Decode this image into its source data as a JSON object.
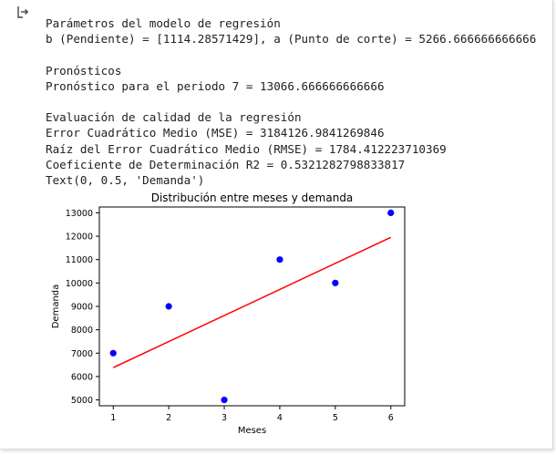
{
  "output_icon": "output-redirect-icon",
  "stdout_lines": [
    "Parámetros del modelo de regresión",
    "b (Pendiente) = [1114.28571429], a (Punto de corte) = 5266.666666666666",
    "",
    "Pronósticos",
    "Pronóstico para el periodo 7 = 13066.666666666666",
    "",
    "Evaluación de calidad de la regresión",
    "Error Cuadrático Medio (MSE) = 3184126.9841269846",
    "Raíz del Error Cuadrático Medio (RMSE) = 1784.412223710369",
    "Coeficiente de Determinación R2 = 0.5321282798833817",
    "Text(0, 0.5, 'Demanda')"
  ],
  "chart_data": {
    "type": "scatter",
    "title": "Distribución entre meses y demanda",
    "xlabel": "Meses",
    "ylabel": "Demanda",
    "x_ticks": [
      1,
      2,
      3,
      4,
      5,
      6
    ],
    "y_ticks": [
      5000,
      6000,
      7000,
      8000,
      9000,
      10000,
      11000,
      12000,
      13000
    ],
    "xlim": [
      0.75,
      6.25
    ],
    "ylim": [
      4750,
      13250
    ],
    "grid": false,
    "series": [
      {
        "kind": "points",
        "color": "#0000ff",
        "x": [
          1,
          2,
          3,
          4,
          5,
          6
        ],
        "y": [
          7000,
          9000,
          5000,
          11000,
          10000,
          13000
        ]
      },
      {
        "kind": "line",
        "color": "#ff0000",
        "x": [
          1,
          6
        ],
        "y": [
          6380.95,
          11952.38
        ]
      }
    ]
  }
}
